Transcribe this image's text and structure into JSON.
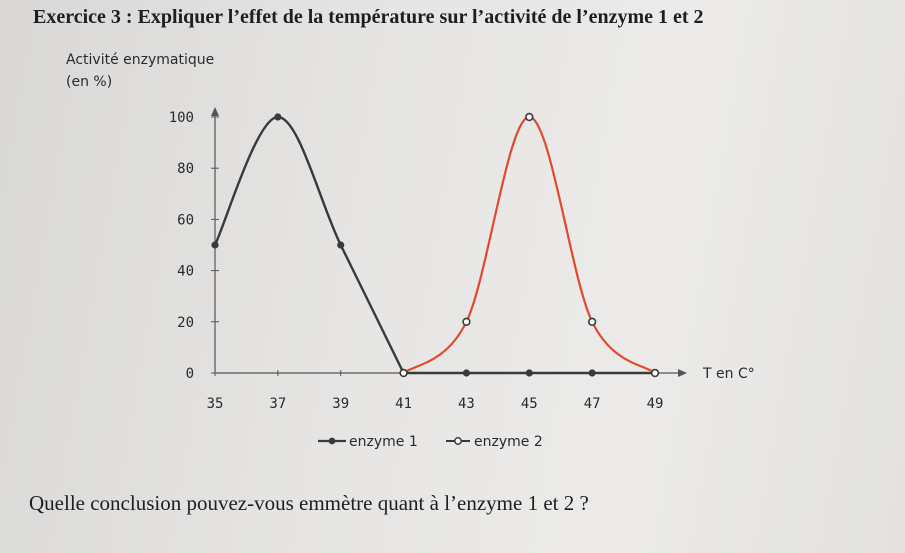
{
  "exercise": {
    "title": "Exercice 3 : Expliquer l’effet de la température sur l’activité de l’enzyme 1 et 2",
    "question": "Quelle conclusion pouvez-vous emmètre quant à l’enzyme 1 et 2 ?"
  },
  "chart_data": {
    "type": "line",
    "ylabel_line1": "Activité enzymatique",
    "ylabel_line2": "(en %)",
    "xlabel": "T en C°",
    "x_ticks": [
      "35",
      "37",
      "39",
      "41",
      "43",
      "45",
      "47",
      "49"
    ],
    "y_ticks": [
      "0",
      "20",
      "40",
      "60",
      "80",
      "100"
    ],
    "xlim": [
      35,
      49
    ],
    "ylim": [
      0,
      100
    ],
    "series": [
      {
        "name": "enzyme 1",
        "color": "#3a3a3a",
        "x": [
          35,
          37,
          39,
          41,
          43,
          45,
          47,
          49
        ],
        "y": [
          50,
          100,
          50,
          0,
          0,
          0,
          0,
          0
        ]
      },
      {
        "name": "enzyme 2",
        "color": "#e04a2a",
        "x": [
          41,
          43,
          45,
          47,
          49
        ],
        "y": [
          0,
          20,
          100,
          20,
          0
        ]
      }
    ],
    "legend_position": "bottom",
    "grid": false
  }
}
